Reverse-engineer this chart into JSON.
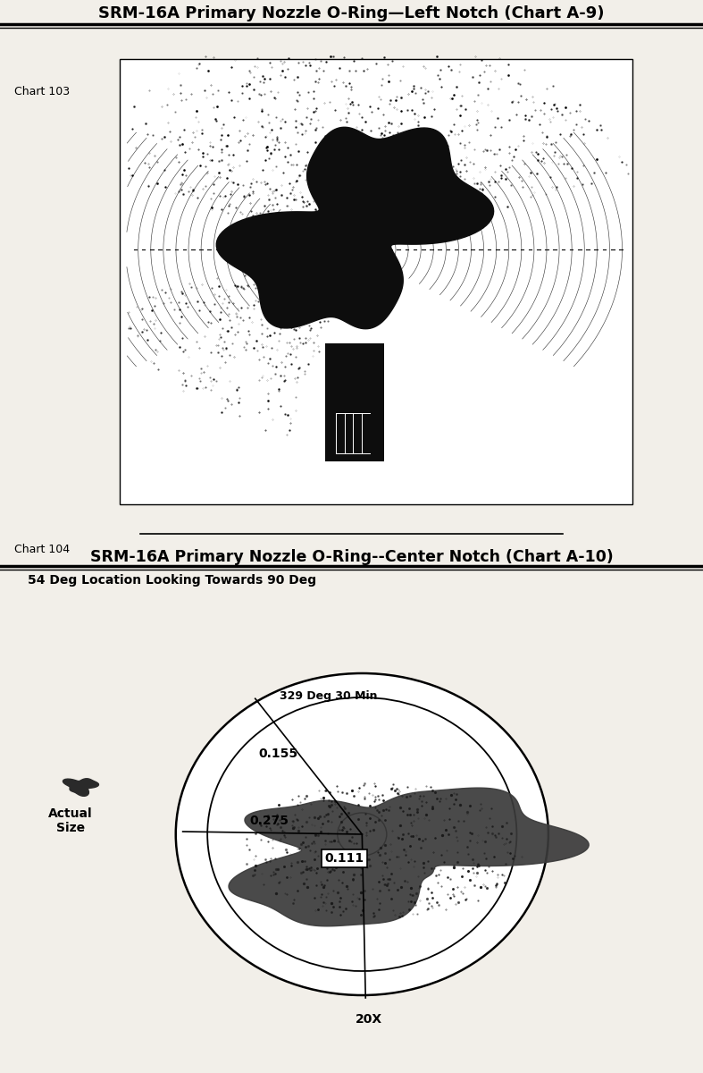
{
  "chart103_title": "SRM-16A Primary Nozzle O-Ring—Left Notch (Chart A-9)",
  "chart103_label": "Chart 103",
  "chart104_title": "SRM-16A Primary Nozzle O-Ring--Center Notch (Chart A-10)",
  "chart104_label": "Chart 104",
  "chart104_subtitle": "54 Deg Location Looking Towards 90 Deg",
  "annotation_155": "0.155",
  "annotation_275": "0.275",
  "annotation_111": "0.111",
  "annotation_329": "329 Deg 30 Min",
  "annotation_20x": "20X",
  "annotation_actual": "Actual\nSize",
  "bg_color": "#f2efe9",
  "title_color": "#111111",
  "line_color": "#111111"
}
